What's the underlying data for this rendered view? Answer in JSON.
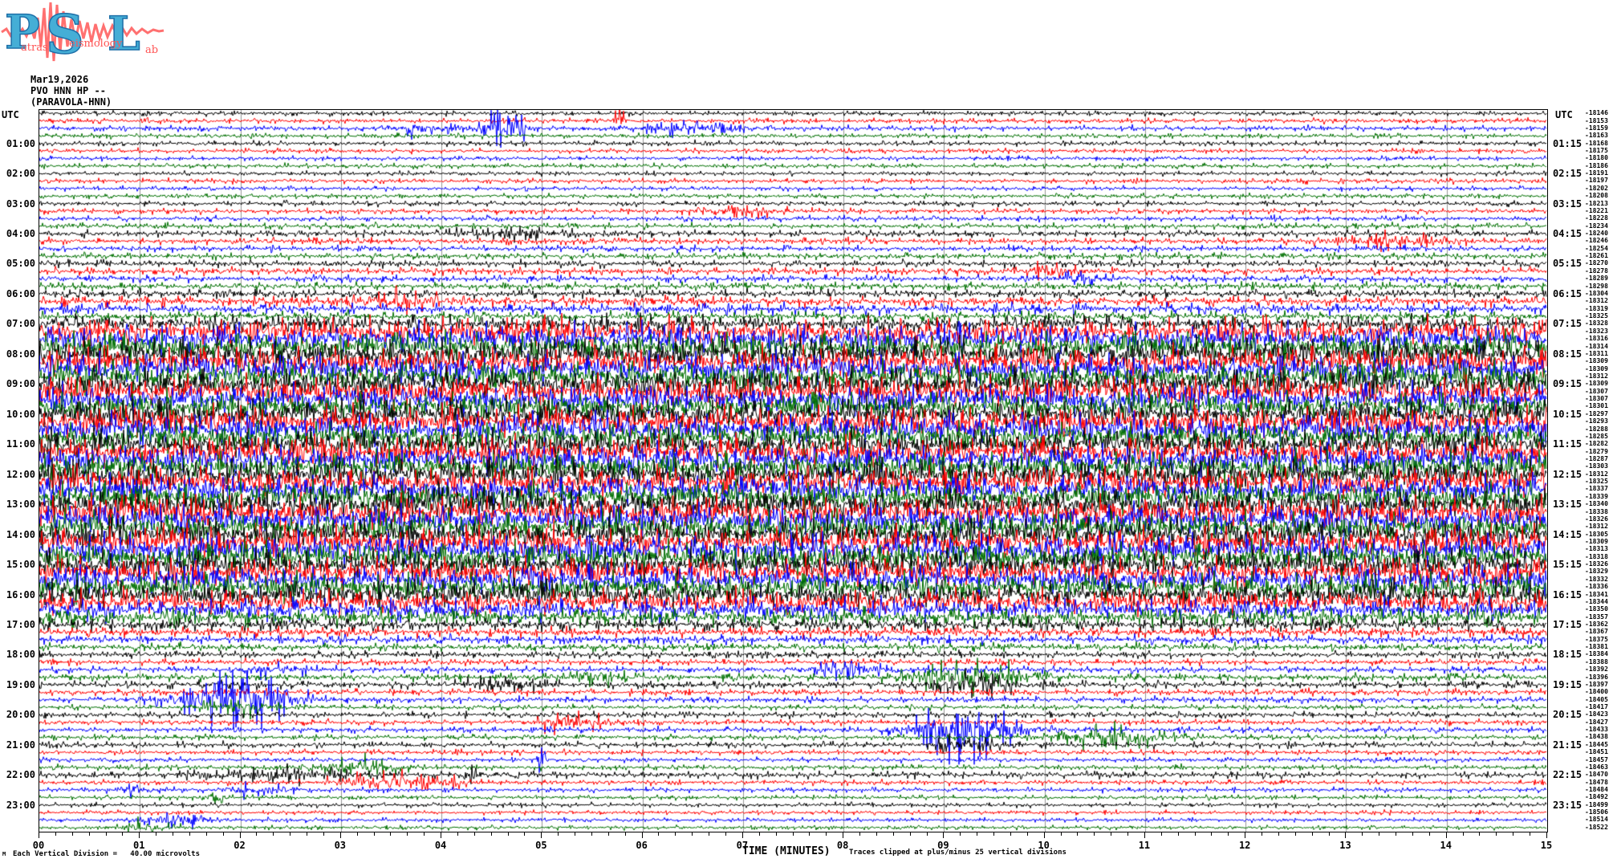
{
  "logo": {
    "p": "P",
    "s": "S",
    "l": "L",
    "word1": "atras",
    "word2": "eismology",
    "word3": "ab",
    "letter_color": "#45aed6",
    "letter_outline": "#1d6fa8",
    "wave_color": "#ff7070",
    "word_color": "#ff5555"
  },
  "header": {
    "date": "Mar19,2026",
    "line2": "PVO HNN HP --",
    "line3": "(PARAVOLA-HNN)"
  },
  "axis": {
    "utc_left": "UTC",
    "utc_right": "UTC",
    "x_title": "TIME (MINUTES)",
    "clip_note": "Traces clipped at plus/minus 25 vertical divisions",
    "scale_note": "Each Vertical Division =   40.00 microvolts",
    "watermark": "M"
  },
  "chart_data": {
    "type": "line",
    "subtype": "helicorder-seismogram",
    "title": "PVO HNN HP -- (PARAVOLA-HNN) Mar19,2026",
    "station": "PVO HNN HP",
    "station_name": "(PARAVOLA-HNN)",
    "date": "Mar19,2026",
    "x_axis": {
      "label": "TIME (MINUTES)",
      "range_minutes": [
        0,
        15
      ],
      "tick_labels": [
        "00",
        "01",
        "02",
        "03",
        "04",
        "05",
        "06",
        "07",
        "08",
        "09",
        "10",
        "11",
        "12",
        "13",
        "14",
        "15"
      ],
      "minor_ticks_per_minute": 6,
      "grid": true,
      "grid_color": "#969696"
    },
    "rows": 96,
    "minutes_per_row": 15,
    "first_row_start_utc": "00:00",
    "trace_color_cycle": [
      "#000000",
      "#ff0000",
      "#0000ff",
      "#007000"
    ],
    "left_time_labels": [
      "01:00",
      "02:00",
      "03:00",
      "04:00",
      "05:00",
      "06:00",
      "07:00",
      "08:00",
      "09:00",
      "10:00",
      "11:00",
      "12:00",
      "13:00",
      "14:00",
      "15:00",
      "16:00",
      "17:00",
      "18:00",
      "19:00",
      "20:00",
      "21:00",
      "22:00",
      "23:00"
    ],
    "right_time_labels": [
      "01:15",
      "02:15",
      "03:15",
      "04:15",
      "05:15",
      "06:15",
      "07:15",
      "08:15",
      "09:15",
      "10:15",
      "11:15",
      "12:15",
      "13:15",
      "14:15",
      "15:15",
      "16:15",
      "17:15",
      "18:15",
      "19:15",
      "20:15",
      "21:15",
      "22:15",
      "23:15"
    ],
    "row_end_values": [
      -18146,
      -18153,
      -18159,
      -18163,
      -18168,
      -18175,
      -18180,
      -18186,
      -18191,
      -18197,
      -18202,
      -18208,
      -18213,
      -18221,
      -18228,
      -18234,
      -18240,
      -18246,
      -18254,
      -18261,
      -18270,
      -18278,
      -18289,
      -18298,
      -18304,
      -18312,
      -18319,
      -18325,
      -18328,
      -18323,
      -18316,
      -18314,
      -18311,
      -18309,
      -18309,
      -18312,
      -18309,
      -18307,
      -18307,
      -18301,
      -18297,
      -18293,
      -18288,
      -18285,
      -18282,
      -18279,
      -18287,
      -18303,
      -18312,
      -18325,
      -18337,
      -18339,
      -18340,
      -18338,
      -18326,
      -18312,
      -18305,
      -18309,
      -18313,
      -18318,
      -18326,
      -18329,
      -18332,
      -18336,
      -18341,
      -18344,
      -18350,
      -18357,
      -18362,
      -18367,
      -18375,
      -18381,
      -18384,
      -18388,
      -18392,
      -18396,
      -18397,
      -18400,
      -18405,
      -18417,
      -18423,
      -18427,
      -18433,
      -18438,
      -18445,
      -18451,
      -18457,
      -18463,
      -18470,
      -18478,
      -18484,
      -18492,
      -18499,
      -18506,
      -18514,
      -18522
    ],
    "row_amplitudes": [
      0.16,
      0.17,
      0.18,
      0.16,
      0.17,
      0.16,
      0.15,
      0.16,
      0.15,
      0.16,
      0.15,
      0.16,
      0.17,
      0.17,
      0.18,
      0.19,
      0.22,
      0.21,
      0.2,
      0.21,
      0.23,
      0.24,
      0.23,
      0.25,
      0.27,
      0.32,
      0.33,
      0.32,
      0.5,
      0.85,
      0.9,
      0.88,
      0.95,
      0.9,
      0.92,
      0.9,
      0.95,
      0.92,
      0.9,
      0.88,
      0.9,
      0.92,
      0.95,
      0.9,
      0.88,
      0.9,
      0.92,
      0.95,
      0.95,
      0.92,
      0.9,
      0.92,
      0.95,
      0.95,
      0.92,
      0.9,
      0.92,
      0.95,
      0.9,
      0.88,
      0.85,
      0.88,
      0.85,
      0.82,
      0.8,
      0.75,
      0.68,
      0.58,
      0.4,
      0.33,
      0.28,
      0.26,
      0.22,
      0.2,
      0.22,
      0.24,
      0.24,
      0.21,
      0.2,
      0.18,
      0.2,
      0.18,
      0.19,
      0.18,
      0.2,
      0.17,
      0.16,
      0.18,
      0.22,
      0.17,
      0.16,
      0.15,
      0.15,
      0.14,
      0.14,
      0.14
    ],
    "events": [
      {
        "row": 1,
        "minute": 5.78,
        "width": 0.06,
        "amp": 12
      },
      {
        "row": 2,
        "minute": 3.85,
        "width": 0.3,
        "amp": 7
      },
      {
        "row": 2,
        "minute": 4.6,
        "width": 0.22,
        "amp": 22
      },
      {
        "row": 2,
        "minute": 6.5,
        "width": 0.5,
        "amp": 6
      },
      {
        "row": 13,
        "minute": 7.0,
        "width": 0.4,
        "amp": 5
      },
      {
        "row": 16,
        "minute": 4.8,
        "width": 0.7,
        "amp": 5
      },
      {
        "row": 17,
        "minute": 13.5,
        "width": 0.5,
        "amp": 6
      },
      {
        "row": 21,
        "minute": 10.05,
        "width": 0.2,
        "amp": 10
      },
      {
        "row": 22,
        "minute": 10.35,
        "width": 0.15,
        "amp": 8
      },
      {
        "row": 25,
        "minute": 3.6,
        "width": 0.5,
        "amp": 8
      },
      {
        "row": 74,
        "minute": 2.3,
        "width": 0.3,
        "amp": 7
      },
      {
        "row": 74,
        "minute": 8.0,
        "width": 0.3,
        "amp": 8
      },
      {
        "row": 75,
        "minute": 5.55,
        "width": 0.3,
        "amp": 8
      },
      {
        "row": 75,
        "minute": 9.25,
        "width": 0.55,
        "amp": 18
      },
      {
        "row": 76,
        "minute": 4.65,
        "width": 0.35,
        "amp": 9
      },
      {
        "row": 76,
        "minute": 9.25,
        "width": 0.5,
        "amp": 10
      },
      {
        "row": 78,
        "minute": 1.95,
        "width": 0.5,
        "amp": 34
      },
      {
        "row": 79,
        "minute": 1.95,
        "width": 0.35,
        "amp": 10
      },
      {
        "row": 81,
        "minute": 5.3,
        "width": 0.3,
        "amp": 14
      },
      {
        "row": 82,
        "minute": 9.2,
        "width": 0.45,
        "amp": 40
      },
      {
        "row": 83,
        "minute": 10.65,
        "width": 0.5,
        "amp": 12
      },
      {
        "row": 84,
        "minute": 9.2,
        "width": 0.3,
        "amp": 8
      },
      {
        "row": 86,
        "minute": 5.0,
        "width": 0.05,
        "amp": 18
      },
      {
        "row": 87,
        "minute": 3.2,
        "width": 0.4,
        "amp": 8
      },
      {
        "row": 88,
        "minute": 2.3,
        "width": 0.7,
        "amp": 7
      },
      {
        "row": 88,
        "minute": 4.33,
        "width": 0.05,
        "amp": 26
      },
      {
        "row": 89,
        "minute": 3.6,
        "width": 0.6,
        "amp": 9
      },
      {
        "row": 90,
        "minute": 0.92,
        "width": 0.1,
        "amp": 14
      },
      {
        "row": 90,
        "minute": 2.15,
        "width": 0.3,
        "amp": 7
      },
      {
        "row": 91,
        "minute": 1.78,
        "width": 0.08,
        "amp": 10
      },
      {
        "row": 94,
        "minute": 1.35,
        "width": 0.3,
        "amp": 12
      },
      {
        "row": 95,
        "minute": 1.0,
        "width": 0.3,
        "amp": 6
      }
    ],
    "clip_divisions": 25,
    "microvolts_per_division": 40.0
  }
}
